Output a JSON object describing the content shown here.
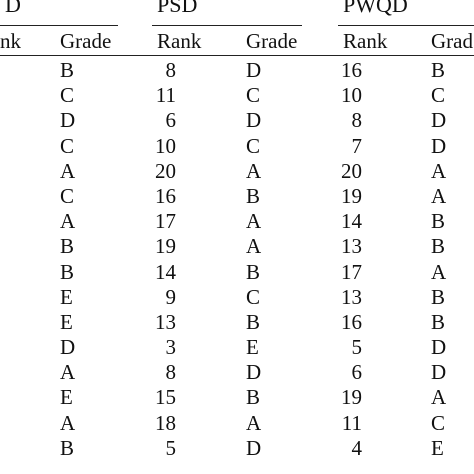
{
  "groups": [
    {
      "title": "D",
      "rank_label": "nk",
      "grade_label": "Grade"
    },
    {
      "title": "PSD",
      "rank_label": "Rank",
      "grade_label": "Grade"
    },
    {
      "title": "PWQD",
      "rank_label": "Rank",
      "grade_label": "Grad"
    }
  ],
  "rows": [
    {
      "g1_grade": "B",
      "psd_rank": "8",
      "psd_grade": "D",
      "pwqd_rank": "16",
      "pwqd_grade": "B"
    },
    {
      "g1_grade": "C",
      "psd_rank": "11",
      "psd_grade": "C",
      "pwqd_rank": "10",
      "pwqd_grade": "C"
    },
    {
      "g1_grade": "D",
      "psd_rank": "6",
      "psd_grade": "D",
      "pwqd_rank": "8",
      "pwqd_grade": "D"
    },
    {
      "g1_grade": "C",
      "psd_rank": "10",
      "psd_grade": "C",
      "pwqd_rank": "7",
      "pwqd_grade": "D"
    },
    {
      "g1_grade": "A",
      "psd_rank": "20",
      "psd_grade": "A",
      "pwqd_rank": "20",
      "pwqd_grade": "A"
    },
    {
      "g1_grade": "C",
      "psd_rank": "16",
      "psd_grade": "B",
      "pwqd_rank": "19",
      "pwqd_grade": "A"
    },
    {
      "g1_grade": "A",
      "psd_rank": "17",
      "psd_grade": "A",
      "pwqd_rank": "14",
      "pwqd_grade": "B"
    },
    {
      "g1_grade": "B",
      "psd_rank": "19",
      "psd_grade": "A",
      "pwqd_rank": "13",
      "pwqd_grade": "B"
    },
    {
      "g1_grade": "B",
      "psd_rank": "14",
      "psd_grade": "B",
      "pwqd_rank": "17",
      "pwqd_grade": "A"
    },
    {
      "g1_grade": "E",
      "psd_rank": "9",
      "psd_grade": "C",
      "pwqd_rank": "13",
      "pwqd_grade": "B"
    },
    {
      "g1_grade": "E",
      "psd_rank": "13",
      "psd_grade": "B",
      "pwqd_rank": "16",
      "pwqd_grade": "B"
    },
    {
      "g1_grade": "D",
      "psd_rank": "3",
      "psd_grade": "E",
      "pwqd_rank": "5",
      "pwqd_grade": "D"
    },
    {
      "g1_grade": "A",
      "psd_rank": "8",
      "psd_grade": "D",
      "pwqd_rank": "6",
      "pwqd_grade": "D"
    },
    {
      "g1_grade": "E",
      "psd_rank": "15",
      "psd_grade": "B",
      "pwqd_rank": "19",
      "pwqd_grade": "A"
    },
    {
      "g1_grade": "A",
      "psd_rank": "18",
      "psd_grade": "A",
      "pwqd_rank": "11",
      "pwqd_grade": "C"
    },
    {
      "g1_grade": "B",
      "psd_rank": "5",
      "psd_grade": "D",
      "pwqd_rank": "4",
      "pwqd_grade": "E"
    }
  ]
}
